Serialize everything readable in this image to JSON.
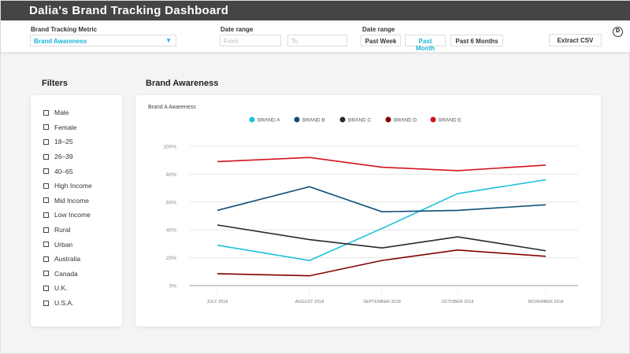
{
  "header": {
    "title": "Dalia's Brand Tracking Dashboard"
  },
  "toolbar": {
    "metric_label": "Brand Tracking Metric",
    "metric_value": "Brand Awareness",
    "date_range_label": "Date range",
    "from_placeholder": "From",
    "to_placeholder": "To",
    "date_range_label2": "Date range",
    "past_week": "Past Week",
    "past_month": "Past Month",
    "past_6_months": "Past 6 Months",
    "extract_csv": "Extract CSV",
    "avatar": "D"
  },
  "filters": {
    "title": "Filters",
    "items": [
      "Male",
      "Female",
      "18–25",
      "26–39",
      "40–65",
      "High Income",
      "Mid Income",
      "Low Income",
      "Rural",
      "Urban",
      "Australia",
      "Canada",
      "U.K.",
      "U.S.A."
    ]
  },
  "main": {
    "title": "Brand Awareness"
  },
  "chart_data": {
    "type": "line",
    "title": "Brand A Awareness",
    "categories": [
      "JULY 2018",
      "AUGUST 2018",
      "SEPTEMBER 2018",
      "OCTOBER 2018",
      "NOVEMBER 2018"
    ],
    "yticks": [
      "0%",
      "20%",
      "40%",
      "60%",
      "80%",
      "100%"
    ],
    "ylim": [
      0,
      100
    ],
    "legend": "top-center",
    "grid": true,
    "series": [
      {
        "name": "BRAND A",
        "color": "#1ec0e0",
        "values": [
          29,
          18,
          41,
          66,
          76
        ]
      },
      {
        "name": "BRAND B",
        "color": "#0f4d78",
        "values": [
          54,
          71,
          53,
          54,
          58
        ]
      },
      {
        "name": "BRAND C",
        "color": "#222a33",
        "values": [
          43.5,
          33,
          27,
          35,
          25
        ]
      },
      {
        "name": "BRAND D",
        "color": "#800000",
        "values": [
          8.5,
          7,
          18,
          25.5,
          21
        ]
      },
      {
        "name": "BRAND E",
        "color": "#d0141c",
        "values": [
          89,
          92,
          85,
          82.5,
          86.5
        ]
      }
    ]
  }
}
